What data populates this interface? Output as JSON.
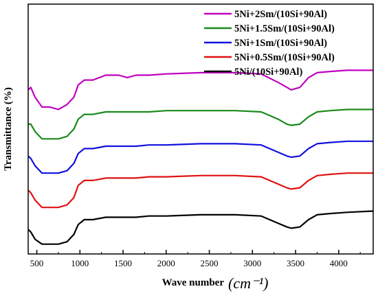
{
  "chart_data": {
    "type": "line",
    "title": "",
    "xlabel": "Wave number",
    "xunit": "(cm⁻¹)",
    "ylabel": "Transmittance (%)",
    "xlim": [
      400,
      4400
    ],
    "xticks": [
      500,
      1000,
      1500,
      2000,
      2500,
      3000,
      3500,
      4000
    ],
    "y_ticks_shown": false,
    "legend_position": "top-right",
    "series": [
      {
        "name": "5Ni+2Sm/(10Si+90Al)",
        "color": "#c000c0",
        "x": [
          400,
          430,
          480,
          560,
          650,
          750,
          850,
          930,
          980,
          1050,
          1150,
          1300,
          1450,
          1550,
          1650,
          1800,
          2000,
          2400,
          2800,
          3100,
          3300,
          3400,
          3450,
          3550,
          3650,
          3750,
          3900,
          4100,
          4400
        ],
        "y": [
          65,
          66,
          62,
          58,
          58,
          57,
          59,
          62,
          67,
          69,
          69,
          71,
          71,
          70,
          71,
          71,
          71.5,
          72,
          72,
          71.5,
          68,
          66,
          65,
          66,
          70,
          72,
          72.5,
          73,
          73
        ]
      },
      {
        "name": "5Ni+1.5Sm/(10Si+90Al)",
        "color": "#1a8a1a",
        "x": [
          400,
          430,
          480,
          560,
          650,
          750,
          850,
          930,
          980,
          1050,
          1150,
          1300,
          1450,
          1550,
          1650,
          1800,
          2000,
          2400,
          2800,
          3100,
          3300,
          3400,
          3450,
          3550,
          3650,
          3750,
          3900,
          4100,
          4400
        ],
        "y": [
          51,
          51,
          48,
          45,
          45,
          45,
          46,
          49,
          53,
          55,
          55,
          56,
          56,
          56,
          56,
          56,
          56.5,
          56.5,
          56.5,
          56,
          53,
          51,
          50.5,
          51,
          54,
          56,
          56.5,
          57,
          57
        ]
      },
      {
        "name": "5Ni+1Sm/(10Si+90Al)",
        "color": "#1010e0",
        "x": [
          400,
          430,
          480,
          560,
          650,
          750,
          850,
          930,
          980,
          1050,
          1150,
          1300,
          1450,
          1550,
          1650,
          1800,
          2000,
          2400,
          2800,
          3100,
          3300,
          3400,
          3450,
          3550,
          3650,
          3750,
          3900,
          4100,
          4400
        ],
        "y": [
          38,
          37,
          34,
          31,
          31,
          31,
          32,
          35,
          39,
          41,
          41,
          42,
          42,
          42,
          42,
          42.5,
          42.5,
          43,
          43,
          42.5,
          39.5,
          38,
          37.5,
          38,
          41,
          43,
          43.5,
          44,
          44
        ]
      },
      {
        "name": "5Ni+0.5Sm/(10Si+90Al)",
        "color": "#e01010",
        "x": [
          400,
          430,
          480,
          560,
          650,
          750,
          850,
          930,
          980,
          1050,
          1150,
          1300,
          1450,
          1550,
          1650,
          1800,
          2000,
          2400,
          2800,
          3100,
          3300,
          3400,
          3450,
          3550,
          3650,
          3750,
          3900,
          4100,
          4400
        ],
        "y": [
          24,
          23,
          20,
          17,
          17,
          17,
          18,
          21,
          26,
          28,
          28,
          29,
          29,
          29,
          29,
          29.5,
          29.5,
          30,
          30,
          29.5,
          26.5,
          25,
          24.5,
          25,
          28,
          30,
          30.5,
          31,
          31
        ]
      },
      {
        "name": "5Ni/(10Si+90Al)",
        "color": "#000000",
        "x": [
          400,
          430,
          480,
          560,
          650,
          750,
          850,
          930,
          980,
          1050,
          1150,
          1300,
          1450,
          1550,
          1650,
          1800,
          2000,
          2400,
          2800,
          3100,
          3300,
          3400,
          3450,
          3550,
          3650,
          3750,
          3900,
          4100,
          4400
        ],
        "y": [
          8,
          7,
          4,
          2,
          2,
          2,
          3,
          6,
          10,
          12,
          12,
          13,
          13,
          13,
          13,
          13.5,
          13.5,
          14,
          14,
          13.5,
          10.5,
          9,
          8.5,
          9,
          12,
          14,
          14.5,
          15,
          15.5
        ]
      }
    ]
  }
}
